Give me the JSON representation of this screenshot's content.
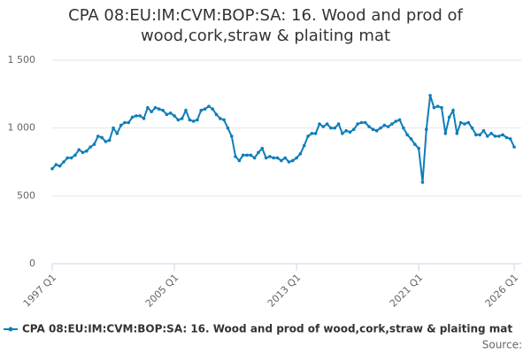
{
  "chart_data": {
    "type": "line",
    "title": "CPA 08:EU:IM:CVM:BOP:SA: 16. Wood and prod of wood,cork,straw & plaiting mat",
    "source": "Source:",
    "categories": [
      "1997 Q1",
      null,
      null,
      null,
      null,
      null,
      null,
      null,
      null,
      null,
      null,
      null,
      null,
      null,
      null,
      null,
      null,
      null,
      null,
      null,
      null,
      null,
      null,
      null,
      null,
      null,
      null,
      null,
      null,
      null,
      null,
      null,
      "2005 Q1",
      null,
      null,
      null,
      null,
      null,
      null,
      null,
      null,
      null,
      null,
      null,
      null,
      null,
      null,
      null,
      null,
      null,
      null,
      null,
      null,
      null,
      null,
      null,
      null,
      null,
      null,
      null,
      null,
      null,
      null,
      null,
      "2013 Q1",
      null,
      null,
      null,
      null,
      null,
      null,
      null,
      null,
      null,
      null,
      null,
      null,
      null,
      null,
      null,
      null,
      null,
      null,
      null,
      null,
      null,
      null,
      null,
      null,
      null,
      null,
      null,
      null,
      null,
      null,
      null,
      "2021 Q1",
      null,
      null,
      null,
      null,
      null,
      null,
      null,
      null,
      null,
      null,
      null,
      null,
      null,
      null,
      null,
      null,
      null,
      null,
      null,
      null,
      null,
      null,
      null,
      null,
      "2026 Q1"
    ],
    "series": [
      {
        "name": "CPA 08:EU:IM:CVM:BOP:SA: 16. Wood and prod of wood,cork,straw & plaiting mat",
        "color": "#0f7dba",
        "values": [
          700,
          730,
          720,
          750,
          780,
          780,
          800,
          840,
          820,
          830,
          860,
          880,
          940,
          930,
          900,
          910,
          1000,
          960,
          1020,
          1040,
          1040,
          1080,
          1090,
          1090,
          1070,
          1150,
          1120,
          1150,
          1140,
          1130,
          1100,
          1110,
          1090,
          1060,
          1070,
          1130,
          1060,
          1050,
          1060,
          1130,
          1140,
          1160,
          1140,
          1100,
          1070,
          1060,
          1000,
          940,
          790,
          760,
          800,
          800,
          800,
          780,
          820,
          850,
          780,
          790,
          780,
          780,
          760,
          780,
          750,
          760,
          780,
          810,
          870,
          940,
          960,
          960,
          1030,
          1010,
          1030,
          1000,
          1000,
          1030,
          960,
          980,
          970,
          990,
          1030,
          1040,
          1040,
          1010,
          990,
          980,
          1000,
          1020,
          1010,
          1030,
          1050,
          1060,
          1000,
          950,
          920,
          880,
          850,
          600,
          990,
          1240,
          1150,
          1160,
          1150,
          960,
          1080,
          1130,
          960,
          1040,
          1030,
          1040,
          1000,
          950,
          950,
          980,
          940,
          960,
          940,
          940,
          950,
          930,
          920,
          860
        ]
      }
    ],
    "ylim": [
      0,
      1500
    ],
    "yticks": [
      0,
      500,
      {
        "value": 1000,
        "label": "1 000"
      },
      {
        "value": 1500,
        "label": "1 500"
      }
    ],
    "grid": true
  }
}
